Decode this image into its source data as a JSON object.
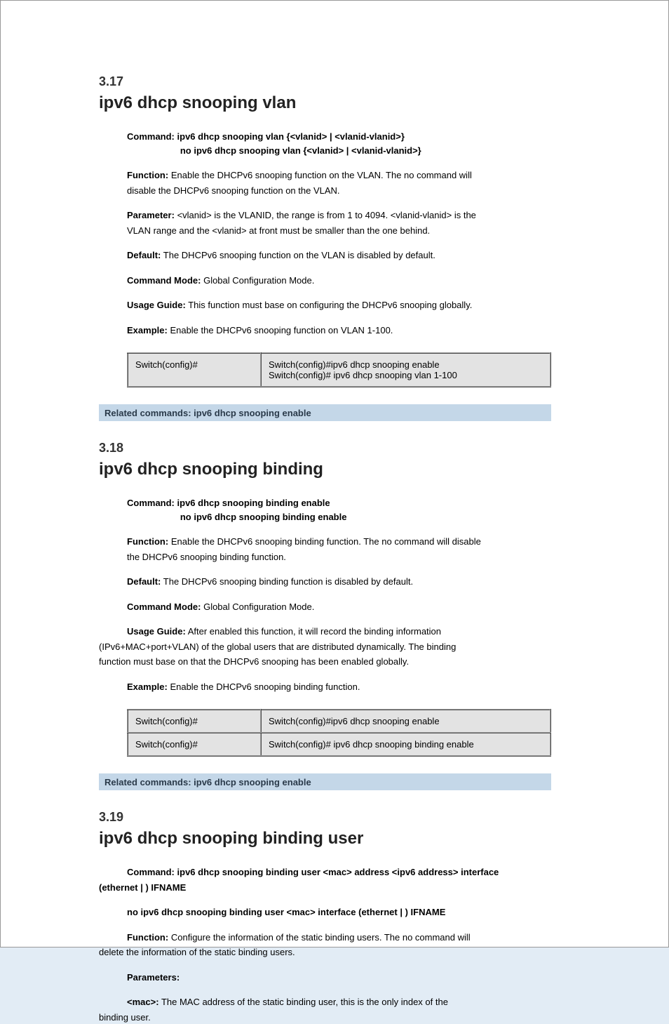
{
  "colors": {
    "page_bg": "#ffffff",
    "outer_bg": "#e2ecf5",
    "table_cell_bg": "#e3e3e3",
    "bar_bg": "#c4d7e8",
    "bar_text": "#2a3a4a"
  },
  "section": {
    "number": "3.17",
    "title": "ipv6 dhcp snooping vlan"
  },
  "command_full": {
    "label": "Command:",
    "pos": "ipv6 dhcp snooping vlan {<vlanid> | <vlanid-vlanid>}",
    "neg": "no ipv6 dhcp snooping vlan {<vlanid> | <vlanid-vlanid>}"
  },
  "function": {
    "label0": "Function:",
    "text0": "Enable the DHCPv6 snooping function on the VLAN. The no command will"
  },
  "function_line2": "disable the DHCPv6 snooping function on the VLAN.",
  "parameter": {
    "label0": "Parameter:",
    "text0": "<vlanid> is the VLANID, the range is from 1 to 4094. <vlanid-vlanid> is the"
  },
  "parameter_line2": "VLAN range and the <vlanid> at front must be smaller than the one behind.",
  "default": {
    "label": "Default:",
    "text": "The DHCPv6 snooping function on the VLAN is disabled by default."
  },
  "mode": {
    "label": "Command Mode:",
    "text": "Global Configuration Mode."
  },
  "usage": {
    "label": "Usage Guide:",
    "text": "This function must base on configuring the DHCPv6 snooping globally."
  },
  "example": {
    "label": "Example:",
    "text": "Enable the DHCPv6 snooping function on VLAN 1-100."
  },
  "table1": {
    "r0c0": "Switch(config)#",
    "r0c1": "Switch(config)#ipv6 dhcp snooping enable\nSwitch(config)# ipv6 dhcp snooping vlan 1-100"
  },
  "bar1": {
    "text": "Related commands: ipv6 dhcp snooping enable"
  },
  "section2": {
    "number": "3.18",
    "title": "ipv6 dhcp snooping binding"
  },
  "command2": {
    "label": "Command:",
    "pos": "ipv6 dhcp snooping binding enable",
    "neg": "no ipv6 dhcp snooping binding enable"
  },
  "function2": {
    "label0": "Function:",
    "text0": "Enable the DHCPv6 snooping binding function. The no command will disable"
  },
  "function2_line2": "the DHCPv6 snooping binding function.",
  "default2": {
    "label": "Default:",
    "text": "The DHCPv6 snooping binding function is disabled by default."
  },
  "mode2": {
    "label": "Command Mode:",
    "text": "Global Configuration Mode."
  },
  "usage2": {
    "label0": "Usage Guide:",
    "text0": "After enabled this function, it will record the binding information"
  },
  "usage2_line2": "(IPv6+MAC+port+VLAN) of the global users that are distributed dynamically. The binding",
  "usage2_line3": "function must base on that the DHCPv6 snooping has been enabled globally.",
  "example2": {
    "label": "Example:",
    "text": "Enable the DHCPv6 snooping binding function."
  },
  "table2": {
    "r0c0": "Switch(config)#",
    "r0c1": "Switch(config)#ipv6 dhcp snooping enable",
    "r1c0": "Switch(config)#",
    "r1c1": "Switch(config)# ipv6 dhcp snooping binding enable"
  },
  "bar2": {
    "text": "Related commands: ipv6 dhcp snooping enable"
  },
  "section3": {
    "number": "3.19",
    "title": "ipv6 dhcp snooping binding user"
  },
  "command3": {
    "label": "Command:",
    "pos1": "ipv6 dhcp snooping binding user <mac> address <ipv6 address> interface",
    "pos2": "(ethernet | ) IFNAME",
    "neg": "no ipv6 dhcp snooping binding user <mac> interface (ethernet | ) IFNAME"
  },
  "function3": {
    "label0": "Function:",
    "text0": "Configure the information of the static binding users. The no command will"
  },
  "function3_line2": "delete the information of the static binding users.",
  "parameters3": {
    "label": "Parameters:"
  },
  "param3_a": {
    "key": "<mac>:",
    "text": "The MAC address of the static binding user, this is the only index of the"
  },
  "param3_a2": "binding user."
}
